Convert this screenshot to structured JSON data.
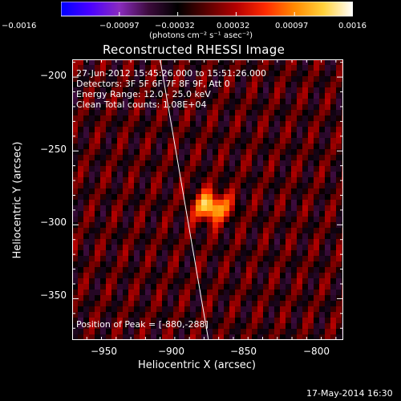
{
  "colorbar": {
    "ticks": [
      "−0.0016",
      "−0.00097",
      "−0.00032",
      "0.00032",
      "0.00097",
      "0.0016"
    ],
    "units": "(photons cm⁻² s⁻¹ asec⁻²)",
    "range": [
      -0.0016,
      0.0016
    ],
    "colors": [
      "#0000ff",
      "#4a00ff",
      "#8a2bbf",
      "#3c0b3c",
      "#000000",
      "#5a0000",
      "#b40000",
      "#ff2a00",
      "#ff8a00",
      "#ffd23c",
      "#ffffff"
    ]
  },
  "plot": {
    "title": "Reconstructed RHESSI Image",
    "xlabel": "Heliocentric X (arcsec)",
    "ylabel": "Heliocentric Y (arcsec)",
    "xlim": [
      -975,
      -790
    ],
    "ylim": [
      -378,
      -188
    ],
    "x_ticks": [
      -950,
      -900,
      -850,
      -800
    ],
    "x_tick_labels": [
      "−950",
      "−900",
      "−850",
      "−800"
    ],
    "y_ticks": [
      -200,
      -250,
      -300,
      -350
    ],
    "y_tick_labels": [
      "−200",
      "−250",
      "−300",
      "−350"
    ],
    "info_lines": [
      "27-Jun-2012 15:45:26.000 to 15:51:26.000",
      "Detectors: 3F 5F 6F 7F 8F 9F, Att 0",
      "Energy Range: 12.0 - 25.0 keV",
      "Clean    Total counts: 1.08E+04"
    ],
    "peak_label": "Position of Peak = [-880,-288]",
    "peak": [
      -880,
      -288
    ],
    "limb_line": [
      [
        -915,
        -188
      ],
      [
        -882,
        -378
      ]
    ]
  },
  "timestamp": "17-May-2014 16:30"
}
